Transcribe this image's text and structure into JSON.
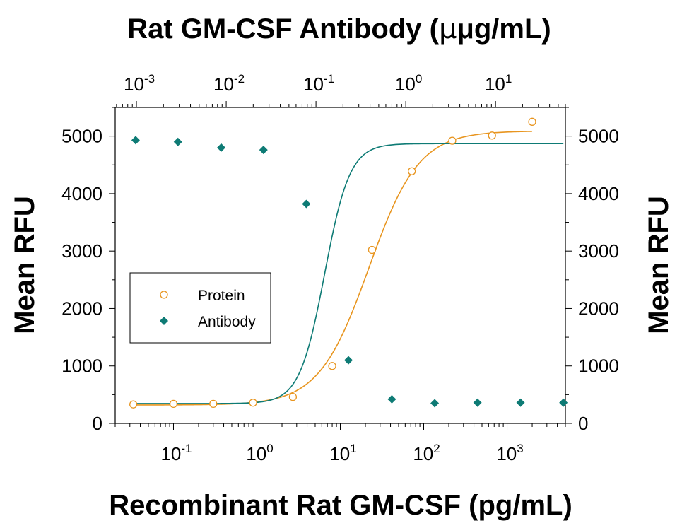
{
  "chart_data": {
    "type": "scatter",
    "title": "",
    "xlabel": "Recombinant Rat GM-CSF (pg/mL)",
    "x2label": "Rat GM-CSF Antibody (μg/mL)",
    "x2label_pre": "Rat GM-CSF Antibody (",
    "x2label_unit": "μg/mL)",
    "ylabel": "Mean RFU",
    "y2label": "Mean RFU",
    "x_scale": "log",
    "xlim": [
      0.02,
      5000
    ],
    "x2_scale": "log",
    "x2lim": [
      0.00058,
      60
    ],
    "ylim": [
      0,
      5500
    ],
    "y_ticks": [
      0,
      1000,
      2000,
      3000,
      4000,
      5000
    ],
    "y_tick_labels": [
      "0",
      "1000",
      "2000",
      "3000",
      "4000",
      "5000"
    ],
    "x_ticks": [
      {
        "value": 0.1,
        "base": "10",
        "exp": "-1"
      },
      {
        "value": 1,
        "base": "10",
        "exp": "0"
      },
      {
        "value": 10,
        "base": "10",
        "exp": "1"
      },
      {
        "value": 100,
        "base": "10",
        "exp": "2"
      },
      {
        "value": 1000,
        "base": "10",
        "exp": "3"
      }
    ],
    "x2_ticks": [
      {
        "value": 0.001,
        "base": "10",
        "exp": "-3"
      },
      {
        "value": 0.01,
        "base": "10",
        "exp": "-2"
      },
      {
        "value": 0.1,
        "base": "10",
        "exp": "-1"
      },
      {
        "value": 1,
        "base": "10",
        "exp": "0"
      },
      {
        "value": 10,
        "base": "10",
        "exp": "1"
      }
    ],
    "grid": false,
    "legend": {
      "position": "center-left"
    },
    "series": [
      {
        "name": "Protein",
        "axis": "bottom",
        "marker": "open-circle",
        "color": "#e8951f",
        "x": [
          0.033,
          0.1,
          0.3,
          0.9,
          2.7,
          8,
          24,
          72,
          220,
          660,
          2000
        ],
        "y": [
          330,
          340,
          340,
          360,
          460,
          1000,
          3020,
          4390,
          4920,
          5010,
          5250
        ],
        "fit": {
          "bottom": 320,
          "top": 5090,
          "ec50": 22,
          "hill": 1.45
        }
      },
      {
        "name": "Antibody",
        "axis": "top",
        "marker": "filled-diamond",
        "color": "#0e7b75",
        "x": [
          0.00098,
          0.0029,
          0.0088,
          0.026,
          0.078,
          0.23,
          0.7,
          2.1,
          6.3,
          19,
          57
        ],
        "y": [
          4930,
          4900,
          4800,
          4760,
          3820,
          1100,
          420,
          350,
          360,
          360,
          360
        ],
        "fit": {
          "bottom": 345,
          "top": 4870,
          "ec50": 0.125,
          "hill": 3.1
        }
      }
    ]
  }
}
